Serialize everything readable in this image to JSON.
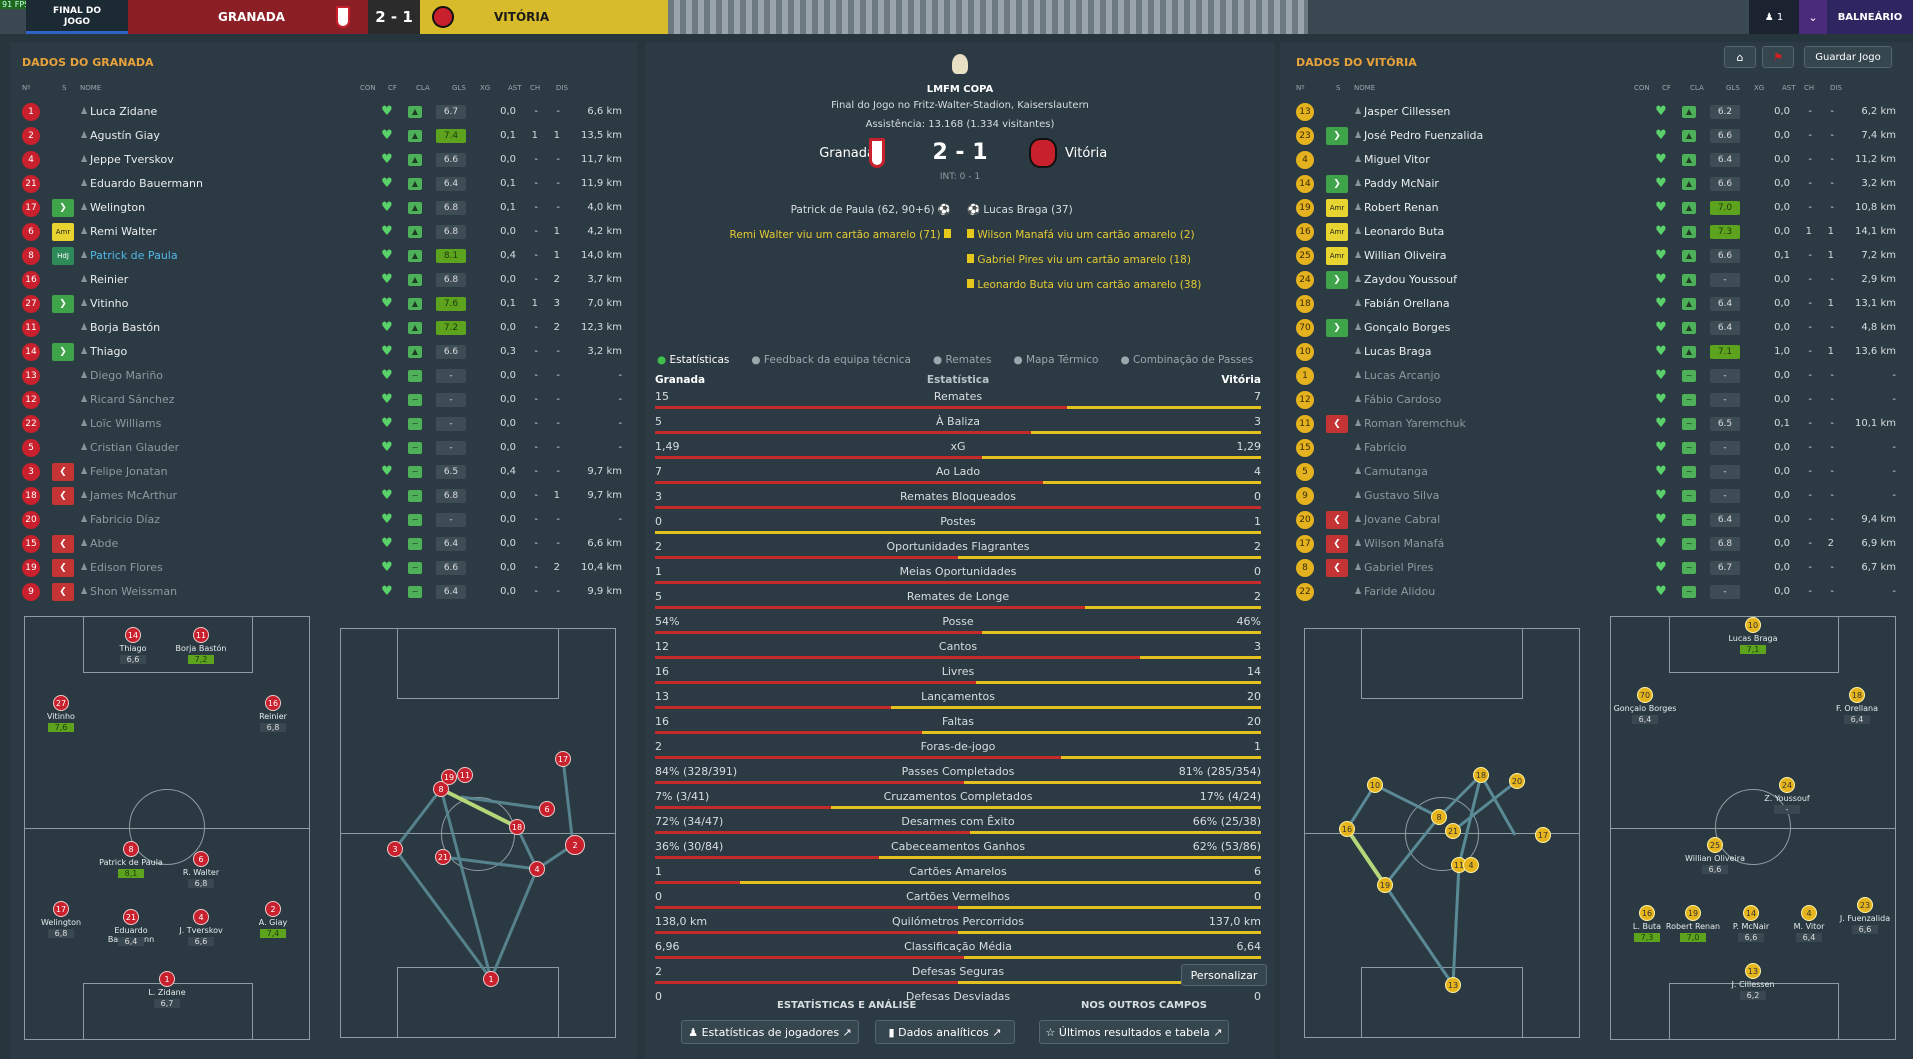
{
  "topbar": {
    "fps": "91 FPS",
    "phase": "FINAL DO JOGO",
    "home": "GRANADA",
    "score": "2 - 1",
    "away": "VITÓRIA",
    "user_count": "1",
    "location": "BALNEÁRIO"
  },
  "home_panel": {
    "title": "DADOS DO GRANADA",
    "headers": [
      "Nº",
      "S",
      "NOME",
      "CON",
      "CF",
      "CLA",
      "GLS",
      "XG",
      "AST",
      "CH",
      "DIS"
    ],
    "players": [
      [
        "1",
        "",
        "Luca Zidane",
        "6.7",
        "0,0",
        "-",
        "-",
        "6,6 km"
      ],
      [
        "2",
        "",
        "Agustín Giay",
        "7.4",
        "0,1",
        "1",
        "1",
        "13,5 km"
      ],
      [
        "4",
        "",
        "Jeppe Tverskov",
        "6.6",
        "0,0",
        "-",
        "-",
        "11,7 km"
      ],
      [
        "21",
        "",
        "Eduardo Bauermann",
        "6.4",
        "0,1",
        "-",
        "-",
        "11,9 km"
      ],
      [
        "17",
        "in",
        "Welington",
        "6.8",
        "0,1",
        "-",
        "-",
        "4,0 km"
      ],
      [
        "6",
        "amr",
        "Remi Walter",
        "6.8",
        "0,0",
        "-",
        "1",
        "4,2 km"
      ],
      [
        "8",
        "hui",
        "Patrick de Paula",
        "8.1",
        "0,4",
        "-",
        "1",
        "14,0 km"
      ],
      [
        "16",
        "",
        "Reinier",
        "6.8",
        "0,0",
        "-",
        "2",
        "3,7 km"
      ],
      [
        "27",
        "in",
        "Vitinho",
        "7.6",
        "0,1",
        "1",
        "3",
        "7,0 km"
      ],
      [
        "11",
        "",
        "Borja Bastón",
        "7.2",
        "0,0",
        "-",
        "2",
        "12,3 km"
      ],
      [
        "14",
        "in",
        "Thiago",
        "6.6",
        "0,3",
        "-",
        "-",
        "3,2 km"
      ],
      [
        "13",
        "",
        "Diego Mariño",
        "-",
        "0,0",
        "-",
        "-",
        "-"
      ],
      [
        "12",
        "",
        "Ricard Sánchez",
        "-",
        "0,0",
        "-",
        "-",
        "-"
      ],
      [
        "22",
        "",
        "Loïc Williams",
        "-",
        "0,0",
        "-",
        "-",
        "-"
      ],
      [
        "5",
        "",
        "Cristian Glauder",
        "-",
        "0,0",
        "-",
        "-",
        "-"
      ],
      [
        "3",
        "out",
        "Felipe Jonatan",
        "6.5",
        "0,4",
        "-",
        "-",
        "9,7 km"
      ],
      [
        "18",
        "out",
        "James McArthur",
        "6.8",
        "0,0",
        "-",
        "1",
        "9,7 km"
      ],
      [
        "20",
        "",
        "Fabricio Díaz",
        "-",
        "0,0",
        "-",
        "-",
        "-"
      ],
      [
        "15",
        "out",
        "Abde",
        "6.4",
        "0,0",
        "-",
        "-",
        "6,6 km"
      ],
      [
        "19",
        "out",
        "Edison Flores",
        "6.6",
        "0,0",
        "-",
        "2",
        "10,4 km"
      ],
      [
        "9",
        "out",
        "Shon Weissman",
        "6.4",
        "0,0",
        "-",
        "-",
        "9,9 km"
      ]
    ]
  },
  "away_panel": {
    "title": "DADOS DO VITÓRIA",
    "home_label": "Guardar Jogo",
    "players": [
      [
        "13",
        "",
        "Jasper Cillessen",
        "6.2",
        "0,0",
        "-",
        "-",
        "6,2 km"
      ],
      [
        "23",
        "in",
        "José Pedro Fuenzalida",
        "6.6",
        "0,0",
        "-",
        "-",
        "7,4 km"
      ],
      [
        "4",
        "",
        "Miguel Vitor",
        "6.4",
        "0,0",
        "-",
        "-",
        "11,2 km"
      ],
      [
        "14",
        "in",
        "Paddy McNair",
        "6.6",
        "0,0",
        "-",
        "-",
        "3,2 km"
      ],
      [
        "19",
        "amr",
        "Robert Renan",
        "7.0",
        "0,0",
        "-",
        "-",
        "10,8 km"
      ],
      [
        "16",
        "amr",
        "Leonardo Buta",
        "7.3",
        "0,0",
        "1",
        "1",
        "14,1 km"
      ],
      [
        "25",
        "amr",
        "Willian Oliveira",
        "6.6",
        "0,1",
        "-",
        "1",
        "7,2 km"
      ],
      [
        "24",
        "in",
        "Zaydou Youssouf",
        "-",
        "0,0",
        "-",
        "-",
        "2,9 km"
      ],
      [
        "18",
        "",
        "Fabián Orellana",
        "6.4",
        "0,0",
        "-",
        "1",
        "13,1 km"
      ],
      [
        "70",
        "in",
        "Gonçalo Borges",
        "6.4",
        "0,0",
        "-",
        "-",
        "4,8 km"
      ],
      [
        "10",
        "",
        "Lucas Braga",
        "7.1",
        "1,0",
        "-",
        "1",
        "13,6 km"
      ],
      [
        "1",
        "",
        "Lucas Arcanjo",
        "-",
        "0,0",
        "-",
        "-",
        "-"
      ],
      [
        "12",
        "",
        "Fábio Cardoso",
        "-",
        "0,0",
        "-",
        "-",
        "-"
      ],
      [
        "11",
        "out",
        "Roman Yaremchuk",
        "6.5",
        "0,1",
        "-",
        "-",
        "10,1 km"
      ],
      [
        "15",
        "",
        "Fabrício",
        "-",
        "0,0",
        "-",
        "-",
        "-"
      ],
      [
        "5",
        "",
        "Camutanga",
        "-",
        "0,0",
        "-",
        "-",
        "-"
      ],
      [
        "9",
        "",
        "Gustavo Silva",
        "-",
        "0,0",
        "-",
        "-",
        "-"
      ],
      [
        "20",
        "out",
        "Jovane Cabral",
        "6.4",
        "0,0",
        "-",
        "-",
        "9,4 km"
      ],
      [
        "17",
        "out",
        "Wilson Manafá",
        "6.8",
        "0,0",
        "-",
        "2",
        "6,9 km"
      ],
      [
        "8",
        "out",
        "Gabriel Pires",
        "6.7",
        "0,0",
        "-",
        "-",
        "6,7 km"
      ],
      [
        "22",
        "",
        "Faride Alidou",
        "-",
        "0,0",
        "-",
        "-",
        "-"
      ]
    ]
  },
  "match": {
    "competition": "LMFM COPA",
    "venue": "Final do Jogo no Fritz-Walter-Stadion, Kaiserslautern",
    "attendance": "Assistência: 13.168 (1.334 visitantes)",
    "home": "Granada",
    "score": "2 - 1",
    "away": "Vitória",
    "ht": "INT: 0 - 1",
    "events_home": [
      "Patrick de Paula (62, 90+6)",
      "Remi Walter viu um cartão amarelo (71)"
    ],
    "events_away": [
      "Lucas Braga (37)",
      "Wilson Manafá viu um cartão amarelo (2)",
      "Gabriel Pires viu um cartão amarelo (18)",
      "Leonardo Buta viu um cartão amarelo (38)"
    ],
    "tabs": [
      "Estatísticas",
      "Feedback da equipa técnica",
      "Remates",
      "Mapa Térmico",
      "Combinação de Passes"
    ],
    "stats_header": {
      "home": "Granada",
      "label": "Estatística",
      "away": "Vitória"
    },
    "stats": [
      [
        "15",
        "Remates",
        "7",
        0.68
      ],
      [
        "5",
        "À Baliza",
        "3",
        0.62
      ],
      [
        "1,49",
        "xG",
        "1,29",
        0.54
      ],
      [
        "7",
        "Ao Lado",
        "4",
        0.64
      ],
      [
        "3",
        "Remates Bloqueados",
        "0",
        1.0
      ],
      [
        "0",
        "Postes",
        "1",
        0.0
      ],
      [
        "2",
        "Oportunidades Flagrantes",
        "2",
        0.5
      ],
      [
        "1",
        "Meias Oportunidades",
        "0",
        1.0
      ],
      [
        "5",
        "Remates de Longe",
        "2",
        0.71
      ],
      [
        "54%",
        "Posse",
        "46%",
        0.54
      ],
      [
        "12",
        "Cantos",
        "3",
        0.8
      ],
      [
        "16",
        "Livres",
        "14",
        0.53
      ],
      [
        "13",
        "Lançamentos",
        "20",
        0.39
      ],
      [
        "16",
        "Faltas",
        "20",
        0.44
      ],
      [
        "2",
        "Foras-de-jogo",
        "1",
        0.67
      ],
      [
        "84% (328/391)",
        "Passes Completados",
        "81% (285/354)",
        0.51
      ],
      [
        "7% (3/41)",
        "Cruzamentos Completados",
        "17% (4/24)",
        0.29
      ],
      [
        "72% (34/47)",
        "Desarmes com Êxito",
        "66% (25/38)",
        0.52
      ],
      [
        "36% (30/84)",
        "Cabeceamentos Ganhos",
        "62% (53/86)",
        0.37
      ],
      [
        "1",
        "Cartões Amarelos",
        "6",
        0.14
      ],
      [
        "0",
        "Cartões Vermelhos",
        "0",
        0.5
      ],
      [
        "138,0 km",
        "Quilómetros Percorridos",
        "137,0 km",
        0.5
      ],
      [
        "6,96",
        "Classificação Média",
        "6,64",
        0.51
      ],
      [
        "2",
        "Defesas Seguras",
        "2",
        0.5
      ],
      [
        "0",
        "Defesas Desviadas",
        "0",
        0.5
      ]
    ],
    "customize": "Personalizar",
    "analysis_title": "ESTATÍSTICAS E ANÁLISE",
    "other_title": "NOS OUTROS CAMPOS",
    "btn_players": "Estatísticas de jogadores",
    "btn_analytics": "Dados analíticos",
    "btn_results": "Últimos resultados e tabela"
  },
  "home_formation": [
    [
      "14",
      "Thiago",
      "6,6"
    ],
    [
      "11",
      "Borja Bastón",
      "7,2"
    ],
    [
      "27",
      "Vitinho",
      "7,6"
    ],
    [
      "16",
      "Reinier",
      "6,8"
    ],
    [
      "8",
      "Patrick de Paula",
      "8,1"
    ],
    [
      "6",
      "R. Walter",
      "6,8"
    ],
    [
      "17",
      "Welington",
      "6,8"
    ],
    [
      "21",
      "Eduardo Bauermann",
      "6,4"
    ],
    [
      "4",
      "J. Tverskov",
      "6,6"
    ],
    [
      "2",
      "A. Giay",
      "7,4"
    ],
    [
      "1",
      "L. Zidane",
      "6,7"
    ]
  ],
  "away_formation": [
    [
      "10",
      "Lucas Braga",
      "7,1"
    ],
    [
      "70",
      "Gonçalo Borges",
      "6,4"
    ],
    [
      "18",
      "F. Orellana",
      "6,4"
    ],
    [
      "24",
      "Z. Youssouf",
      "-"
    ],
    [
      "25",
      "Willian Oliveira",
      "6,6"
    ],
    [
      "16",
      "L. Buta",
      "7,3"
    ],
    [
      "19",
      "Robert Renan",
      "7,0"
    ],
    [
      "14",
      "P. McNair",
      "6,6"
    ],
    [
      "4",
      "M. Vitor",
      "6,4"
    ],
    [
      "23",
      "J. Fuenzalida",
      "6,6"
    ],
    [
      "13",
      "J. Cillessen",
      "6,2"
    ]
  ]
}
